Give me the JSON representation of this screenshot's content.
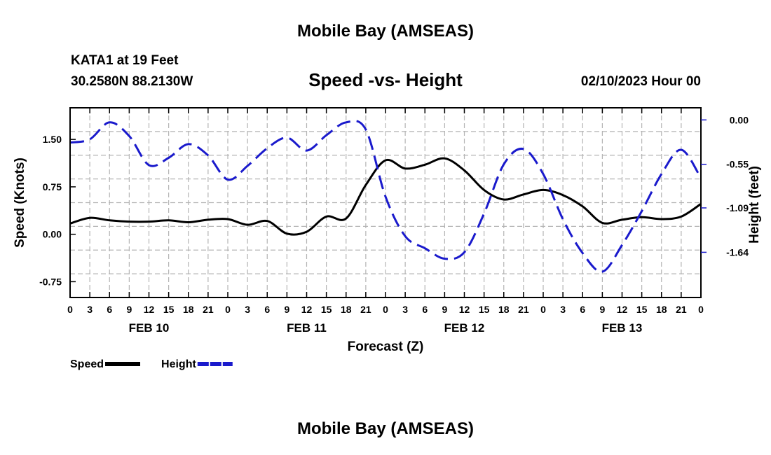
{
  "title": "Mobile Bay (AMSEAS)",
  "footer_title": "Mobile Bay (AMSEAS)",
  "station": "KATA1 at 19 Feet",
  "coordinates": "30.2580N  88.2130W",
  "date_label": "02/10/2023 Hour 00",
  "colors": {
    "speed": "#000000",
    "height": "#1a1acc",
    "grid": "#b4b4b4"
  },
  "chart_data": {
    "type": "line",
    "title": "Speed -vs- Height",
    "xlabel": "Forecast (Z)",
    "ylabel": "Speed (Knots)",
    "y2label": "Height (feet)",
    "xlim": [
      0,
      96
    ],
    "ylim": [
      -1.0,
      2.0
    ],
    "y2lim": [
      -2.2,
      0.15
    ],
    "x_ticks": [
      0,
      3,
      6,
      9,
      12,
      15,
      18,
      21,
      24,
      27,
      30,
      33,
      36,
      39,
      42,
      45,
      48,
      51,
      54,
      57,
      60,
      63,
      66,
      69,
      72,
      75,
      78,
      81,
      84,
      87,
      90,
      93,
      96
    ],
    "x_tick_labels": [
      "0",
      "3",
      "6",
      "9",
      "12",
      "15",
      "18",
      "21",
      "0",
      "3",
      "6",
      "9",
      "12",
      "15",
      "18",
      "21",
      "0",
      "3",
      "6",
      "9",
      "12",
      "15",
      "18",
      "21",
      "0",
      "3",
      "6",
      "9",
      "12",
      "15",
      "18",
      "21",
      "0"
    ],
    "date_labels": [
      {
        "x": 12,
        "label": "FEB 10"
      },
      {
        "x": 36,
        "label": "FEB 11"
      },
      {
        "x": 60,
        "label": "FEB 12"
      },
      {
        "x": 84,
        "label": "FEB 13"
      }
    ],
    "y_ticks": [
      -0.75,
      0.0,
      0.75,
      1.5
    ],
    "y_tick_labels": [
      "-0.75",
      "0.00",
      "0.75",
      "1.50"
    ],
    "y2_ticks": [
      0.0,
      -0.55,
      -1.09,
      -1.64
    ],
    "y2_tick_labels": [
      "0.00",
      "-0.55",
      "-1.09",
      "-1.64"
    ],
    "series": [
      {
        "name": "Speed",
        "axis": "left",
        "style": "solid",
        "x": [
          0,
          3,
          6,
          9,
          12,
          15,
          18,
          21,
          24,
          27,
          30,
          33,
          36,
          39,
          42,
          45,
          48,
          51,
          54,
          57,
          60,
          63,
          66,
          69,
          72,
          75,
          78,
          81,
          84,
          87,
          90,
          93,
          96
        ],
        "values": [
          0.17,
          0.26,
          0.22,
          0.2,
          0.2,
          0.22,
          0.19,
          0.23,
          0.24,
          0.15,
          0.21,
          0.01,
          0.04,
          0.28,
          0.25,
          0.78,
          1.17,
          1.04,
          1.1,
          1.2,
          1.01,
          0.7,
          0.55,
          0.63,
          0.7,
          0.62,
          0.44,
          0.18,
          0.23,
          0.27,
          0.24,
          0.28,
          0.48
        ]
      },
      {
        "name": "Height",
        "axis": "right",
        "style": "dashed",
        "x": [
          0,
          3,
          6,
          9,
          12,
          15,
          18,
          21,
          24,
          27,
          30,
          33,
          36,
          39,
          42,
          45,
          48,
          51,
          54,
          57,
          60,
          63,
          66,
          69,
          72,
          75,
          78,
          81,
          84,
          87,
          90,
          93,
          96
        ],
        "values": [
          -0.28,
          -0.24,
          -0.03,
          -0.2,
          -0.56,
          -0.47,
          -0.3,
          -0.44,
          -0.74,
          -0.57,
          -0.35,
          -0.22,
          -0.38,
          -0.19,
          -0.03,
          -0.12,
          -0.95,
          -1.44,
          -1.59,
          -1.72,
          -1.64,
          -1.16,
          -0.55,
          -0.36,
          -0.67,
          -1.23,
          -1.65,
          -1.88,
          -1.55,
          -1.13,
          -0.67,
          -0.37,
          -0.72
        ]
      }
    ],
    "legend": [
      {
        "label": "Speed",
        "style": "solid"
      },
      {
        "label": "Height",
        "style": "dashed"
      }
    ]
  }
}
